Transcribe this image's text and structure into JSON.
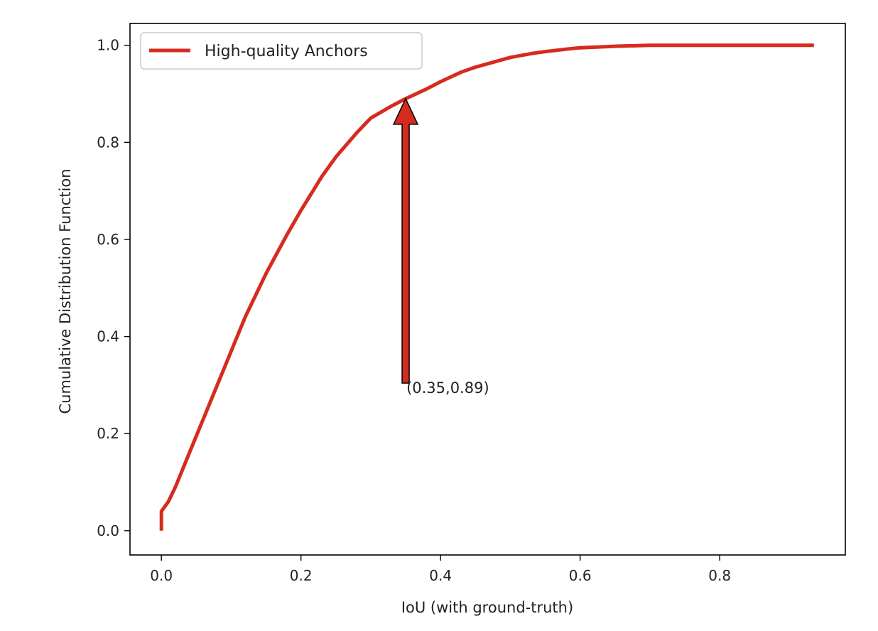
{
  "chart_data": {
    "type": "line",
    "title": "",
    "xlabel": "IoU (with ground-truth)",
    "ylabel": "Cumulative Distribution Function",
    "xlim": [
      -0.045,
      0.98
    ],
    "ylim": [
      -0.05,
      1.045
    ],
    "x_ticks": [
      0.0,
      0.2,
      0.4,
      0.6,
      0.8
    ],
    "x_tick_labels": [
      "0.0",
      "0.2",
      "0.4",
      "0.6",
      "0.8"
    ],
    "y_ticks": [
      0.0,
      0.2,
      0.4,
      0.6,
      0.8,
      1.0
    ],
    "y_tick_labels": [
      "0.0",
      "0.2",
      "0.4",
      "0.6",
      "0.8",
      "1.0"
    ],
    "grid": false,
    "legend": {
      "placement": "top-left"
    },
    "series": [
      {
        "name": "High-quality Anchors",
        "color": "#d62b1f",
        "x": [
          0.0,
          0.0,
          0.01,
          0.02,
          0.04,
          0.06,
          0.08,
          0.1,
          0.12,
          0.15,
          0.18,
          0.2,
          0.23,
          0.25,
          0.28,
          0.3,
          0.33,
          0.35,
          0.38,
          0.4,
          0.43,
          0.45,
          0.48,
          0.5,
          0.53,
          0.55,
          0.58,
          0.6,
          0.65,
          0.7,
          0.75,
          0.8,
          0.85,
          0.9,
          0.935
        ],
        "y": [
          0.0,
          0.04,
          0.06,
          0.09,
          0.16,
          0.23,
          0.3,
          0.37,
          0.44,
          0.53,
          0.61,
          0.66,
          0.73,
          0.77,
          0.82,
          0.85,
          0.875,
          0.89,
          0.91,
          0.925,
          0.945,
          0.955,
          0.967,
          0.975,
          0.983,
          0.987,
          0.992,
          0.995,
          0.998,
          1.0,
          1.0,
          1.0,
          1.0,
          1.0,
          1.0
        ]
      }
    ],
    "annotations": [
      {
        "text": "(0.35,0.89)",
        "x": 0.35,
        "y": 0.89,
        "text_x": 0.35,
        "text_y": 0.31
      }
    ]
  }
}
